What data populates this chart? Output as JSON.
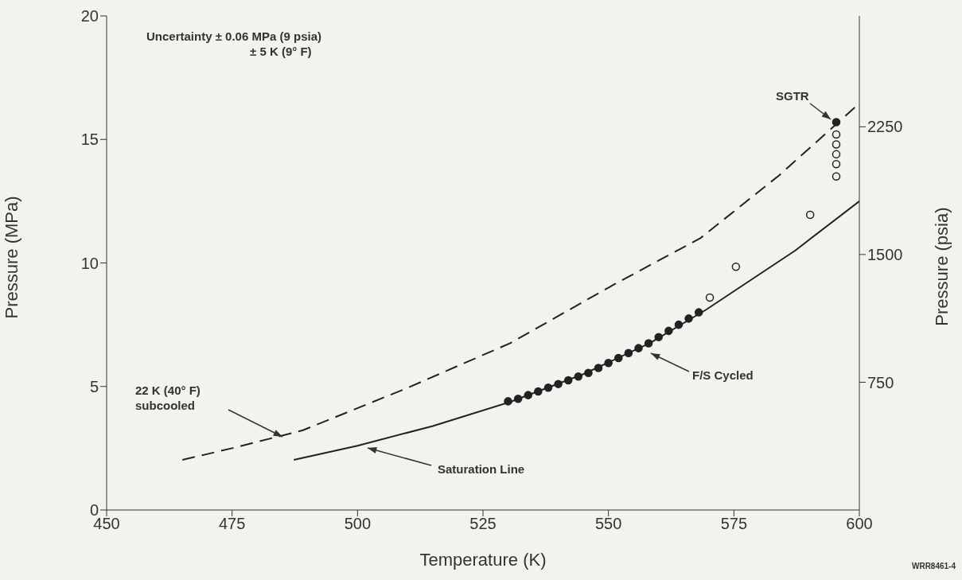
{
  "chart_data": {
    "type": "line",
    "xlabel": "Temperature (K)",
    "ylabel": "Pressure (MPa)",
    "y2label": "Pressure (psia)",
    "xlim": [
      450,
      600
    ],
    "xticks": [
      450,
      475,
      500,
      525,
      550,
      575,
      600
    ],
    "ylim": [
      0,
      20
    ],
    "yticks": [
      0,
      5,
      10,
      15,
      20
    ],
    "y2lim": [
      0,
      2901
    ],
    "y2ticks": [
      750,
      1500,
      2250
    ],
    "grid": false,
    "legend": false,
    "series": [
      {
        "color": "#222222",
        "line_style": "solid",
        "marker": "none",
        "x": [
          487.3,
          500,
          515,
          530.5,
          545,
          558.3,
          569.4,
          587.2,
          600
        ],
        "values": [
          2.03,
          2.6,
          3.4,
          4.38,
          5.5,
          6.76,
          8.1,
          10.5,
          12.5
        ]
      },
      {
        "color": "#222222",
        "line_style": "dashed",
        "marker": "none",
        "x": [
          465.1,
          475,
          489,
          509.8,
          530.5,
          551.3,
          568.3,
          584.1,
          600
        ],
        "values": [
          2.03,
          2.5,
          3.22,
          4.93,
          6.76,
          9.15,
          11.0,
          13.56,
          16.46
        ]
      },
      {
        "type": "scatter",
        "color": "#222222",
        "marker": "circle",
        "x": [
          530,
          532,
          534,
          536,
          538,
          540,
          542,
          544,
          546,
          548,
          550,
          552,
          554,
          556,
          558,
          560,
          562,
          564,
          566,
          568,
          595.4
        ],
        "values": [
          4.4,
          4.5,
          4.65,
          4.8,
          4.95,
          5.1,
          5.25,
          5.4,
          5.55,
          5.75,
          5.95,
          6.15,
          6.35,
          6.55,
          6.75,
          7.0,
          7.25,
          7.5,
          7.75,
          8.0,
          15.7
        ]
      },
      {
        "type": "scatter",
        "color": "#222222",
        "marker": "circle",
        "x": [
          570.2,
          575.4,
          590.2,
          595.4,
          595.4,
          595.4,
          595.4,
          595.4
        ],
        "values": [
          8.6,
          9.85,
          11.95,
          13.5,
          14.0,
          14.4,
          14.8,
          15.2
        ]
      }
    ],
    "annotations": [
      "Uncertainty ± 0.06 MPa (9 psia)\n± 5 K (9° F)",
      "SGTR",
      "F/S Cycled",
      "22 K (40° F)\nsubcooled",
      "Saturation Line",
      "WRR8461-4"
    ]
  }
}
